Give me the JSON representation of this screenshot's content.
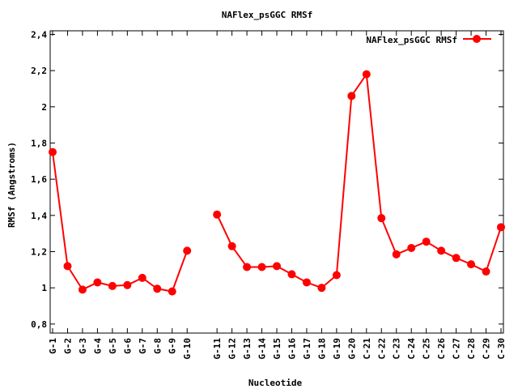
{
  "chart_data": {
    "type": "line",
    "title": "NAFlex_psGGC RMSf",
    "xlabel": "Nucleotide",
    "ylabel": "RMSf (Angstroms)",
    "ylim": [
      0.75,
      2.42
    ],
    "yticks": [
      0.8,
      1,
      1.2,
      1.4,
      1.6,
      1.8,
      2,
      2.2,
      2.4
    ],
    "ytick_labels": [
      "0,8",
      "1",
      "1,2",
      "1,4",
      "1,6",
      "1,8",
      "2",
      "2,2",
      "2,4"
    ],
    "xlim": [
      1,
      31
    ],
    "grid": false,
    "legend": {
      "position": "top-right"
    },
    "color": "#ff0000",
    "categories": [
      "G-1",
      "G-2",
      "G-3",
      "G-4",
      "G-5",
      "G-6",
      "G-7",
      "G-8",
      "G-9",
      "G-10",
      "G-11",
      "G-12",
      "G-13",
      "G-14",
      "G-15",
      "G-16",
      "G-17",
      "G-18",
      "G-19",
      "G-20",
      "C-21",
      "C-22",
      "C-23",
      "C-24",
      "C-25",
      "C-26",
      "C-27",
      "C-28",
      "C-29",
      "C-30"
    ],
    "x": [
      1,
      2,
      3,
      4,
      5,
      6,
      7,
      8,
      9,
      10,
      12,
      13,
      14,
      15,
      16,
      17,
      18,
      19,
      20,
      21,
      22,
      23,
      24,
      25,
      26,
      27,
      28,
      29,
      30,
      31
    ],
    "series": [
      {
        "name": "NAFlex_psGGC RMSf",
        "values": [
          1.75,
          1.12,
          0.99,
          1.03,
          1.01,
          1.015,
          1.055,
          0.995,
          0.98,
          1.205,
          1.405,
          1.23,
          1.115,
          1.115,
          1.12,
          1.075,
          1.03,
          1.0,
          1.07,
          2.06,
          2.18,
          1.385,
          1.185,
          1.22,
          1.255,
          1.205,
          1.165,
          1.13,
          1.09,
          1.335
        ],
        "breaks_after": [
          9
        ]
      }
    ]
  }
}
